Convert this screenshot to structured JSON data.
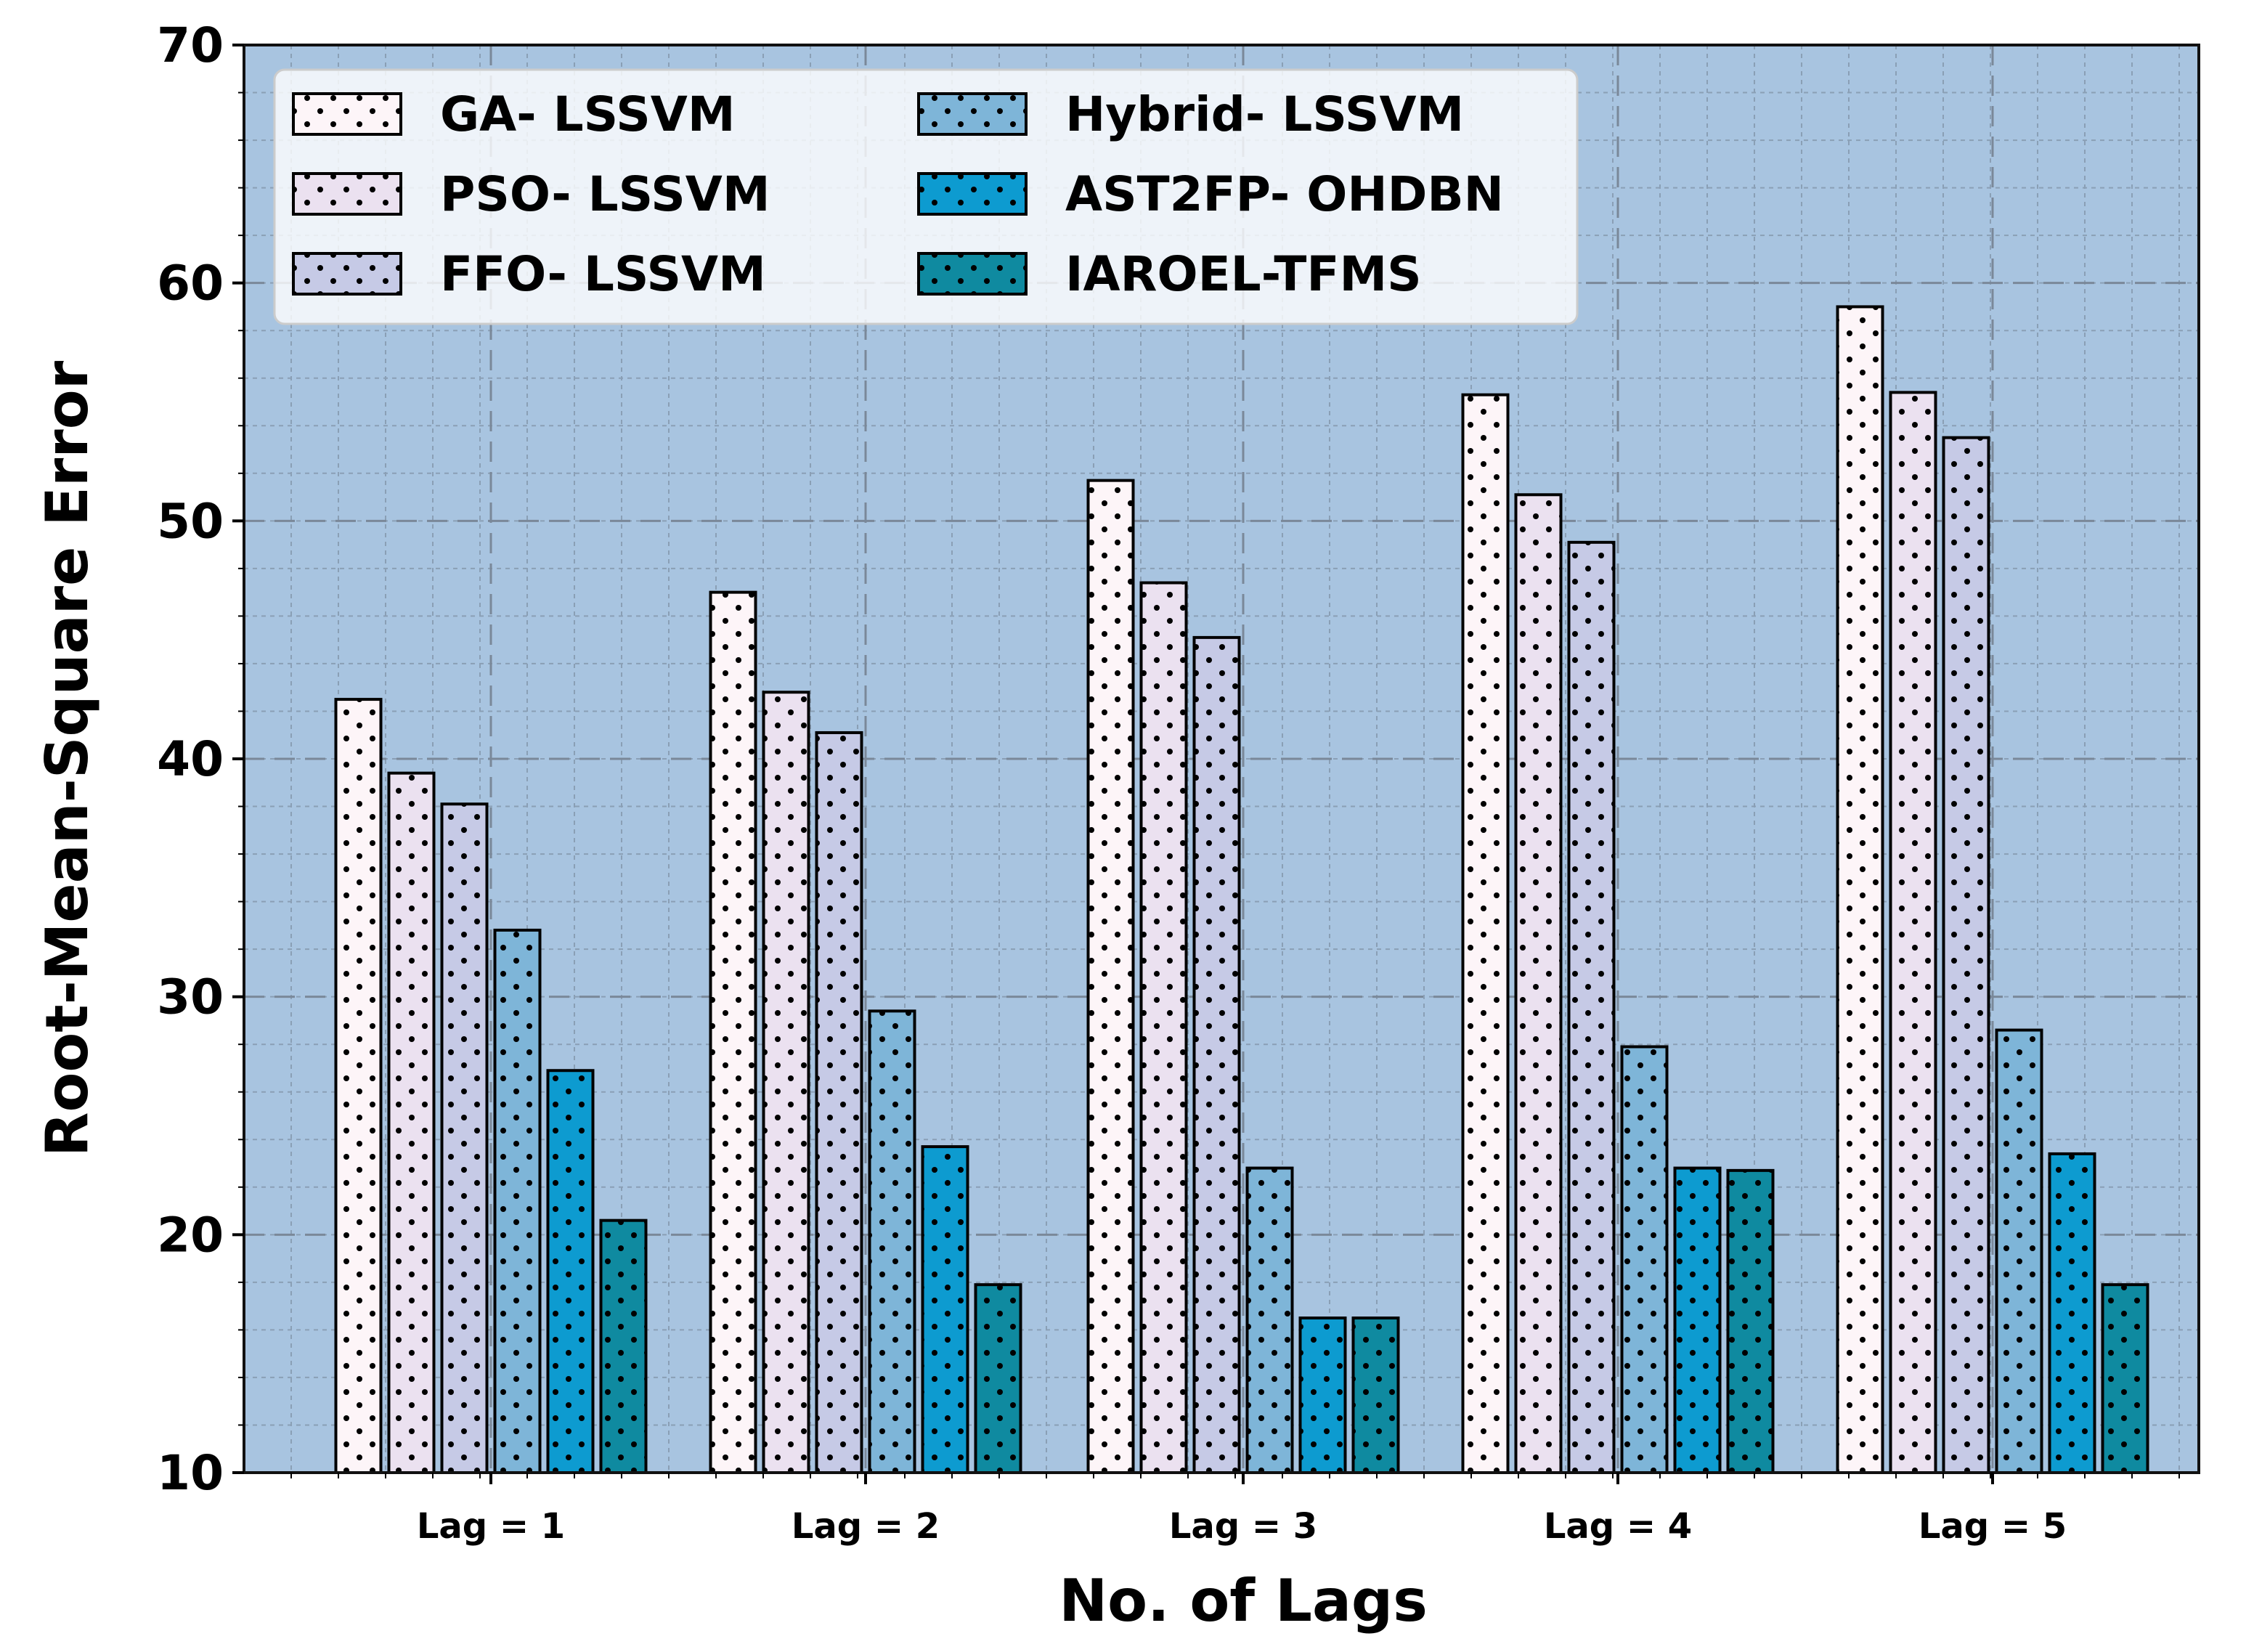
{
  "chart_data": {
    "type": "bar",
    "title": "",
    "xlabel": "No. of Lags",
    "ylabel": "Root-Mean-Square Error",
    "ylim": [
      10,
      70
    ],
    "yticks": [
      10,
      20,
      30,
      40,
      50,
      60,
      70
    ],
    "grid": true,
    "legend_position": "top-left",
    "background_color": "#a8c4e0",
    "categories": [
      "Lag = 1",
      "Lag = 2",
      "Lag = 3",
      "Lag = 4",
      "Lag = 5"
    ],
    "series": [
      {
        "name": "GA- LSSVM",
        "color": "#fdf5f8",
        "values": [
          42.5,
          47,
          51.7,
          55.3,
          59
        ]
      },
      {
        "name": "PSO- LSSVM",
        "color": "#ebe1f0",
        "values": [
          39.4,
          42.8,
          47.4,
          51.1,
          55.4
        ]
      },
      {
        "name": "FFO- LSSVM",
        "color": "#c6cae6",
        "values": [
          38.1,
          41.1,
          45.1,
          49.1,
          53.5
        ]
      },
      {
        "name": "Hybrid- LSSVM",
        "color": "#7eb5d8",
        "values": [
          32.8,
          29.4,
          22.8,
          27.9,
          28.6
        ]
      },
      {
        "name": "AST2FP- OHDBN",
        "color": "#0d9bd0",
        "values": [
          26.9,
          23.7,
          16.5,
          22.8,
          23.4
        ]
      },
      {
        "name": "IAROEL-TFMS",
        "color": "#0f8aa0",
        "values": [
          20.6,
          17.9,
          16.5,
          22.7,
          17.9
        ]
      }
    ]
  }
}
